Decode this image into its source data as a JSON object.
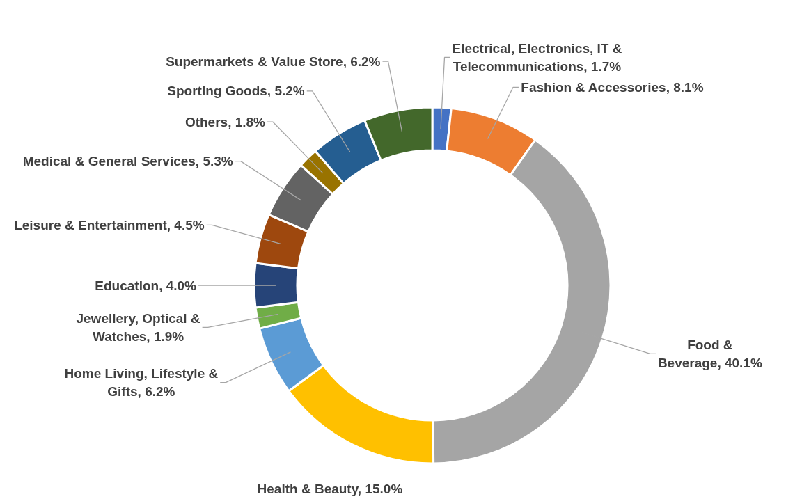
{
  "chart_data": {
    "type": "donut",
    "categories": [
      "Electrical, Electronics, IT & Telecommunications",
      "Fashion & Accessories",
      "Food & Beverage",
      "Health & Beauty",
      "Home Living, Lifestyle & Gifts",
      "Jewellery, Optical & Watches",
      "Education",
      "Leisure & Entertainment",
      "Medical & General Services",
      "Others",
      "Sporting Goods",
      "Supermarkets & Value Store"
    ],
    "values": [
      1.7,
      8.1,
      40.1,
      15.0,
      6.2,
      1.9,
      4.0,
      4.5,
      5.3,
      1.8,
      5.2,
      6.2
    ],
    "value_labels": [
      "1.7%",
      "8.1%",
      "40.1%",
      "15.0%",
      "6.2%",
      "1.9%",
      "4.0%",
      "4.5%",
      "5.3%",
      "1.8%",
      "5.2%",
      "6.2%"
    ],
    "colors": [
      "#4472c4",
      "#ed7d31",
      "#a5a5a5",
      "#ffc000",
      "#5b9bd5",
      "#70ad47",
      "#264478",
      "#9e480e",
      "#636363",
      "#997300",
      "#255e91",
      "#43682b"
    ]
  }
}
